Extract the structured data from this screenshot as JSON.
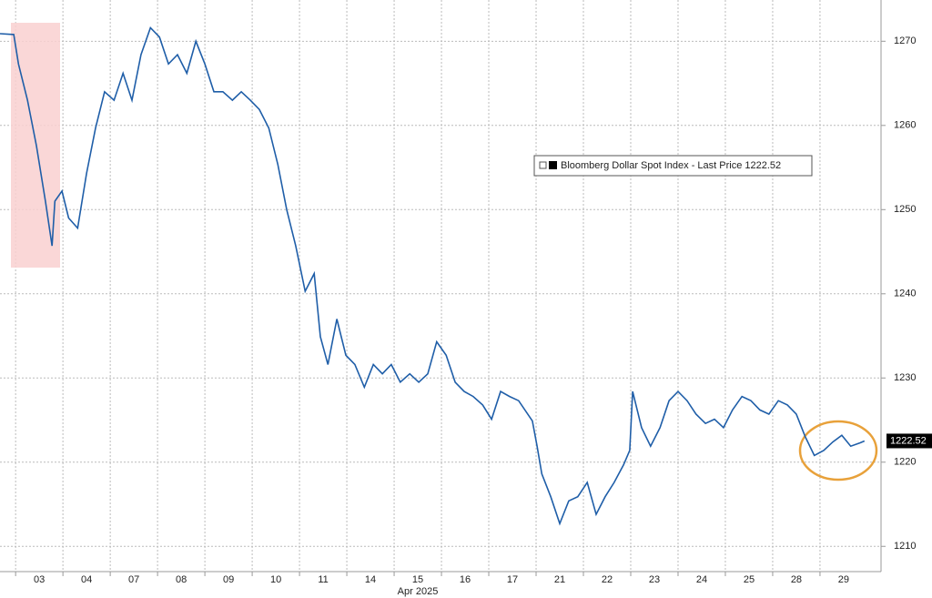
{
  "chart_data": {
    "type": "line",
    "x": [
      -0.33,
      -0.04,
      0.06,
      0.25,
      0.44,
      0.63,
      0.77,
      0.83,
      0.98,
      1.12,
      1.31,
      1.5,
      1.69,
      1.88,
      2.08,
      2.27,
      2.46,
      2.65,
      2.85,
      3.04,
      3.23,
      3.42,
      3.62,
      3.81,
      4,
      4.19,
      4.38,
      4.58,
      4.77,
      4.96,
      5.15,
      5.35,
      5.54,
      5.73,
      5.92,
      6.12,
      6.31,
      6.44,
      6.6,
      6.79,
      6.98,
      7.17,
      7.37,
      7.56,
      7.75,
      7.94,
      8.13,
      8.33,
      8.52,
      8.71,
      8.9,
      9.1,
      9.29,
      9.48,
      9.67,
      9.87,
      10.06,
      10.25,
      10.44,
      10.63,
      10.92,
      11.02,
      11.12,
      11.31,
      11.5,
      11.69,
      11.88,
      12.08,
      12.27,
      12.46,
      12.65,
      12.85,
      12.98,
      13.04,
      13.23,
      13.42,
      13.62,
      13.81,
      14,
      14.19,
      14.38,
      14.58,
      14.77,
      14.96,
      15.15,
      15.35,
      15.54,
      15.73,
      15.92,
      16.12,
      16.31,
      16.5,
      16.69,
      16.88,
      17.08,
      17.27,
      17.46,
      17.65,
      17.85,
      17.94
    ],
    "series": [
      {
        "name": "Bloomberg Dollar Spot Index - Last Price 1222.52",
        "color": "#1f5ea8",
        "values": [
          1270.9,
          1270.8,
          1267.3,
          1263,
          1257.6,
          1251,
          1245.7,
          1251,
          1252.2,
          1249,
          1247.8,
          1254.3,
          1259.7,
          1264,
          1263,
          1266.2,
          1263,
          1268.4,
          1271.6,
          1270.5,
          1267.3,
          1268.4,
          1266.2,
          1270,
          1267.3,
          1264,
          1264,
          1263,
          1264,
          1263,
          1261.9,
          1259.7,
          1255.4,
          1250,
          1245.7,
          1240.3,
          1242.4,
          1234.9,
          1231.6,
          1237,
          1232.7,
          1231.6,
          1228.9,
          1231.6,
          1230.5,
          1231.6,
          1229.5,
          1230.5,
          1229.5,
          1230.5,
          1234.3,
          1232.7,
          1229.5,
          1228.4,
          1227.8,
          1226.8,
          1225.1,
          1228.4,
          1227.8,
          1227.3,
          1224.9,
          1221.9,
          1218.6,
          1215.9,
          1212.7,
          1215.4,
          1215.9,
          1217.6,
          1213.8,
          1215.9,
          1217.6,
          1219.7,
          1221.4,
          1228.4,
          1224.1,
          1221.9,
          1224.1,
          1227.3,
          1228.4,
          1227.3,
          1225.7,
          1224.6,
          1225.1,
          1224.1,
          1226.2,
          1227.8,
          1227.3,
          1226.2,
          1225.7,
          1227.3,
          1226.8,
          1225.7,
          1223,
          1220.8,
          1221.4,
          1222.4,
          1223.2,
          1221.9,
          1222.3,
          1222.52
        ]
      }
    ],
    "xlim": [
      -0.33,
      18.29
    ],
    "xticks": [
      {
        "value": 0,
        "label": "03"
      },
      {
        "value": 1,
        "label": "04"
      },
      {
        "value": 2,
        "label": "07"
      },
      {
        "value": 3,
        "label": "08"
      },
      {
        "value": 4,
        "label": "09"
      },
      {
        "value": 5,
        "label": "10"
      },
      {
        "value": 6,
        "label": "11"
      },
      {
        "value": 7,
        "label": "14"
      },
      {
        "value": 8,
        "label": "15"
      },
      {
        "value": 9,
        "label": "16"
      },
      {
        "value": 10,
        "label": "17"
      },
      {
        "value": 11,
        "label": "21"
      },
      {
        "value": 12,
        "label": "22"
      },
      {
        "value": 13,
        "label": "23"
      },
      {
        "value": 14,
        "label": "24"
      },
      {
        "value": 15,
        "label": "25"
      },
      {
        "value": 16,
        "label": "28"
      },
      {
        "value": 17,
        "label": "29"
      }
    ],
    "x_sublabel": "Apr 2025",
    "ylim": [
      1207,
      1274.9
    ],
    "yticks": [
      1210,
      1220,
      1230,
      1240,
      1250,
      1260,
      1270
    ],
    "grid": true
  }
}
